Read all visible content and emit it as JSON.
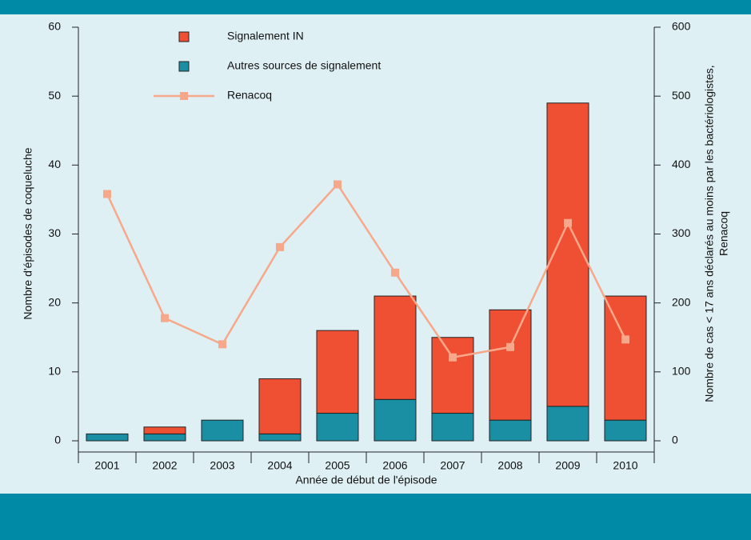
{
  "chart_data": {
    "type": "bar",
    "xlabel": "Année de début de l'épisode",
    "ylabel": "Nombre d'épisodes de coqueluche",
    "y2label": [
      "Nombre de cas < 17 ans déclarés au moins par les bactériologistes,",
      "Renacoq"
    ],
    "categories": [
      "2001",
      "2002",
      "2003",
      "2004",
      "2005",
      "2006",
      "2007",
      "2008",
      "2009",
      "2010"
    ],
    "series": [
      {
        "name": "Signalement IN",
        "color": "#ef5033",
        "type": "bar",
        "values": [
          0,
          1,
          0,
          8,
          12,
          15,
          11,
          16,
          44,
          18
        ]
      },
      {
        "name": "Autres sources de signalement",
        "color": "#1a8fa3",
        "type": "bar",
        "values": [
          1,
          1,
          3,
          1,
          4,
          6,
          4,
          3,
          5,
          3
        ]
      },
      {
        "name": "Renacoq",
        "color": "#f7a88a",
        "type": "line",
        "axis": "y2",
        "values": [
          358,
          178,
          140,
          281,
          372,
          244,
          121,
          136,
          316,
          147
        ]
      }
    ],
    "ylim": [
      0,
      60
    ],
    "yticks": [
      0,
      10,
      20,
      30,
      40,
      50,
      60
    ],
    "y2lim": [
      0,
      600
    ],
    "y2ticks": [
      0,
      100,
      200,
      300,
      400,
      500,
      600
    ]
  }
}
